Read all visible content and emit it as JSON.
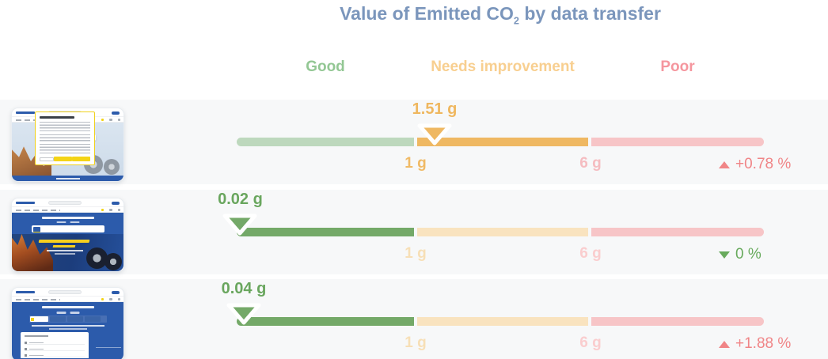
{
  "title": {
    "prefix": "Value of Emitted CO",
    "sub": "2",
    "suffix": " by data transfer"
  },
  "bands": {
    "good": "Good",
    "needs_improvement": "Needs improvement",
    "poor": "Poor"
  },
  "rows": [
    {
      "value_label": "1.51 g",
      "value": 1.51,
      "zone": "needs_improvement",
      "tick_low": "1 g",
      "tick_high": "6 g",
      "delta": "+0.78 %",
      "delta_dir": "up",
      "thumbnail": "michelin-page-with-cookie-consent-dialog"
    },
    {
      "value_label": "0.02 g",
      "value": 0.02,
      "zone": "good",
      "tick_low": "1 g",
      "tick_high": "6 g",
      "delta": "0 %",
      "delta_dir": "down",
      "thumbnail": "michelin-homepage-hero"
    },
    {
      "value_label": "0.04 g",
      "value": 0.04,
      "zone": "good",
      "tick_low": "1 g",
      "tick_high": "6 g",
      "delta": "+1.88 %",
      "delta_dir": "up",
      "thumbnail": "michelin-tire-search-page-with-dropdown"
    }
  ],
  "colors": {
    "title": "#7b96bc",
    "band_good": "#93c794",
    "band_needs_improvement": "#f8cf90",
    "band_poor": "#f5969e",
    "row_bg": "#f7f8f9",
    "seg_green_active": "#74a968",
    "seg_green_muted": "#bdd8bd",
    "seg_orange_active": "#efb862",
    "seg_orange_muted": "#f9e3bf",
    "seg_pink_muted": "#f7c5c7",
    "value_orange": "#efb75f",
    "value_green": "#69a65e",
    "tick_orange_active": "#f0ba66",
    "tick_orange_muted": "#f7dfb6",
    "tick_pink_strong": "#f5bcc0",
    "tick_pink_muted": "#facdce",
    "delta_up": "#f08587",
    "delta_down": "#68aa5d",
    "michelin_blue": "#2c5bab",
    "michelin_yellow": "#f4d416"
  },
  "chart_data": {
    "type": "bar",
    "subtype": "bullet-gauge-per-row",
    "title": "Value of Emitted CO2 by data transfer",
    "unit": "g",
    "categories": [
      "michelin-page-with-cookie-consent-dialog",
      "michelin-homepage-hero",
      "michelin-tire-search-page-with-dropdown"
    ],
    "values": [
      1.51,
      0.02,
      0.04
    ],
    "value_labels": [
      "1.51 g",
      "0.02 g",
      "0.04 g"
    ],
    "bands": [
      {
        "label": "Good",
        "range": [
          0,
          1
        ]
      },
      {
        "label": "Needs improvement",
        "range": [
          1,
          6
        ]
      },
      {
        "label": "Poor",
        "range": [
          6,
          null
        ]
      }
    ],
    "axis_ticks": [
      "1 g",
      "6 g"
    ],
    "deltas": [
      {
        "text": "+0.78 %",
        "direction": "up"
      },
      {
        "text": "0 %",
        "direction": "down"
      },
      {
        "text": "+1.88 %",
        "direction": "up"
      }
    ],
    "legend_position": "top",
    "grid": false
  }
}
